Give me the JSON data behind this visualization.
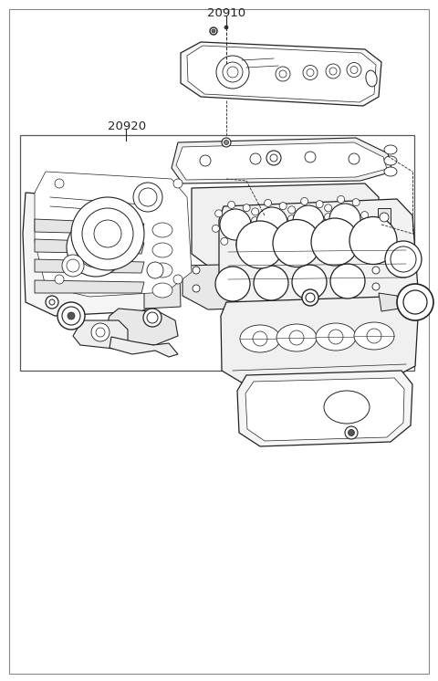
{
  "background_color": "#ffffff",
  "line_color": "#222222",
  "label_20910": "20910",
  "label_20920": "20920",
  "fig_width": 4.8,
  "fig_height": 7.46,
  "dpi": 100
}
